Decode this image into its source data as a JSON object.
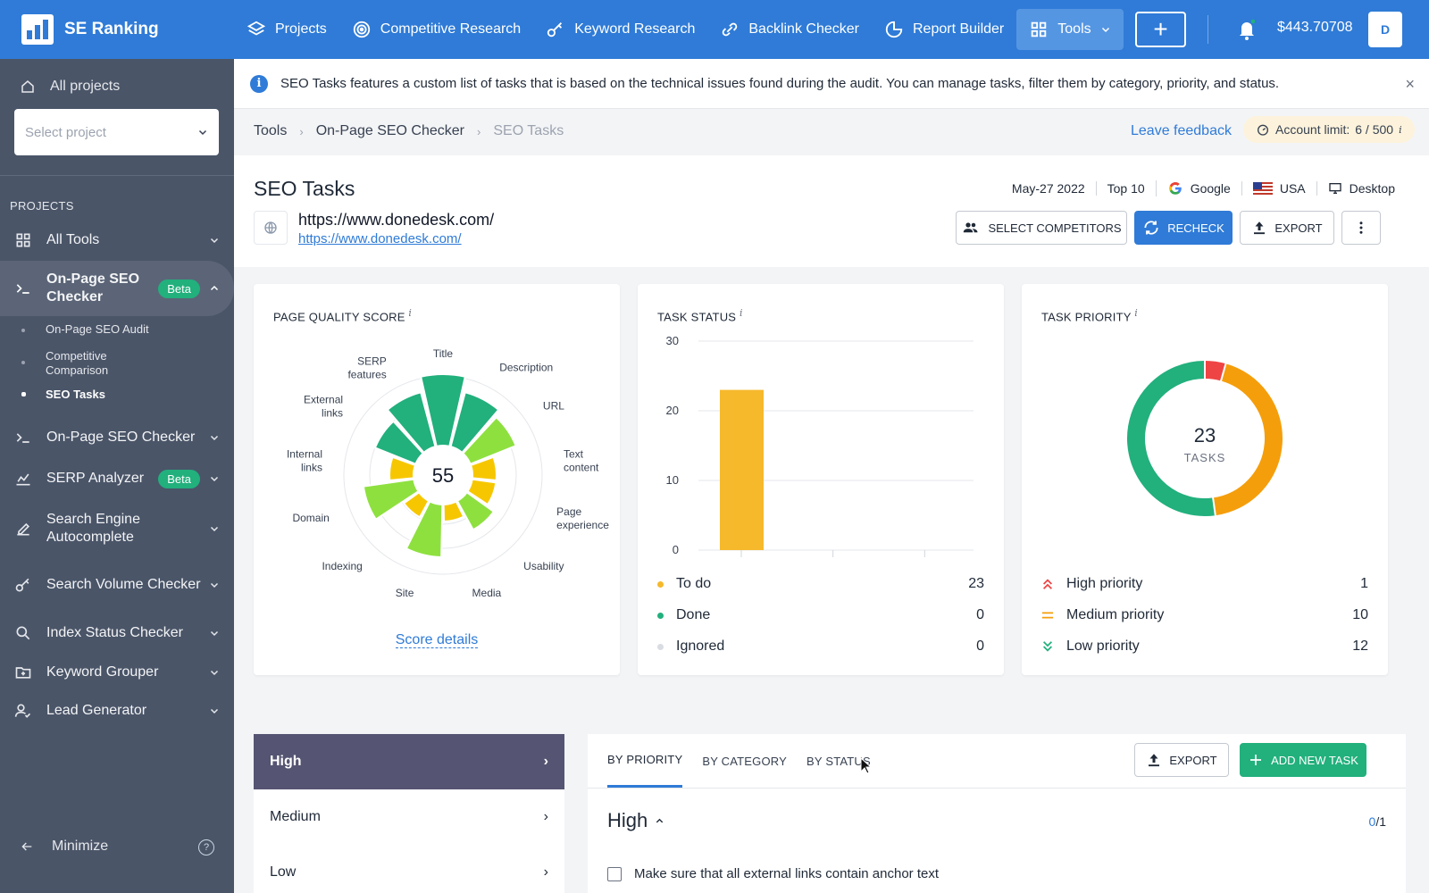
{
  "app": {
    "logo_text": "SE Ranking",
    "brand_color": "#2f7bd7"
  },
  "topnav": {
    "items": [
      {
        "label": "Projects",
        "icon": "layers-icon"
      },
      {
        "label": "Competitive Research",
        "icon": "target-icon"
      },
      {
        "label": "Keyword Research",
        "icon": "key-icon"
      },
      {
        "label": "Backlink Checker",
        "icon": "link-icon"
      },
      {
        "label": "Report Builder",
        "icon": "pie-icon"
      },
      {
        "label": "Tools",
        "icon": "grid-icon"
      }
    ],
    "add_label": "+",
    "balance": "$443.70708",
    "avatar_initial": "D"
  },
  "sidebar": {
    "all_projects": "All projects",
    "select_placeholder": "Select project",
    "section_label": "PROJECTS",
    "items": [
      {
        "label": "All Tools"
      },
      {
        "label": "On-Page SEO Checker",
        "badge": "Beta"
      },
      {
        "label": "On-Page SEO Checker"
      },
      {
        "label": "SERP Analyzer",
        "badge": "Beta"
      },
      {
        "label": "Search Engine Autocomplete"
      },
      {
        "label": "Search Volume Checker"
      },
      {
        "label": "Index Status Checker"
      },
      {
        "label": "Keyword Grouper"
      },
      {
        "label": "Lead Generator"
      }
    ],
    "subitems": [
      "On-Page SEO Audit",
      "Competitive Comparison",
      "SEO Tasks"
    ],
    "minimize": "Minimize",
    "help": "?"
  },
  "info": {
    "text": "SEO Tasks features a custom list of tasks that is based on the technical issues found during the audit. You can manage tasks, filter them by category, priority, and status.",
    "close": "×"
  },
  "breadcrumb": [
    "Tools",
    "On-Page SEO Checker",
    "SEO Tasks"
  ],
  "feedback": "Leave feedback",
  "account_limit": {
    "label": "Account limit:",
    "value": "6 / 500",
    "info": "i"
  },
  "page": {
    "title": "SEO Tasks",
    "date": "May-27 2022",
    "top": "Top 10",
    "engine": "Google",
    "country": "USA",
    "device": "Desktop",
    "url": "https://www.donedesk.com/",
    "url_link": "https://www.donedesk.com/",
    "buttons": {
      "competitors": "SELECT COMPETITORS",
      "recheck": "RECHECK",
      "export": "EXPORT"
    }
  },
  "quality": {
    "title": "PAGE QUALITY SCORE",
    "info": "i",
    "score": "55",
    "details": "Score details",
    "labels": [
      "Title",
      "Description",
      "URL",
      "Text content",
      "Page experience",
      "Usability",
      "Media",
      "Site",
      "Indexing",
      "Domain",
      "Internal links",
      "External links",
      "SERP features"
    ]
  },
  "status": {
    "title": "TASK STATUS",
    "info": "i",
    "rows": [
      {
        "label": "To do",
        "value": "23",
        "color": "#f6b92b"
      },
      {
        "label": "Done",
        "value": "0",
        "color": "#22b07d"
      },
      {
        "label": "Ignored",
        "value": "0",
        "color": "#d1d5db"
      }
    ]
  },
  "priority": {
    "title": "TASK PRIORITY",
    "info": "i",
    "total": "23",
    "total_label": "TASKS",
    "rows": [
      {
        "label": "High priority",
        "value": "1",
        "color": "#ef4444"
      },
      {
        "label": "Medium priority",
        "value": "10",
        "color": "#f59e0b"
      },
      {
        "label": "Low priority",
        "value": "12",
        "color": "#22b07d"
      }
    ]
  },
  "chart_data": [
    {
      "type": "bar",
      "title": "TASK STATUS",
      "categories": [
        "To do",
        "Done",
        "Ignored"
      ],
      "values": [
        23,
        0,
        0
      ],
      "ylim": [
        0,
        30
      ],
      "yticks": [
        0,
        10,
        20,
        30
      ],
      "grid": true
    },
    {
      "type": "pie",
      "title": "TASK PRIORITY",
      "categories": [
        "High priority",
        "Medium priority",
        "Low priority"
      ],
      "values": [
        1,
        10,
        12
      ],
      "colors": [
        "#ef4444",
        "#f59e0b",
        "#22b07d"
      ]
    }
  ],
  "tasks": {
    "priorities": [
      "High",
      "Medium",
      "Low"
    ],
    "tabs": [
      "BY PRIORITY",
      "BY CATEGORY",
      "BY STATUS"
    ],
    "export": "EXPORT",
    "add": "ADD NEW TASK",
    "group_title": "High",
    "count_done": "0",
    "count_total": "/1",
    "first_task": "Make sure that all external links contain anchor text"
  }
}
